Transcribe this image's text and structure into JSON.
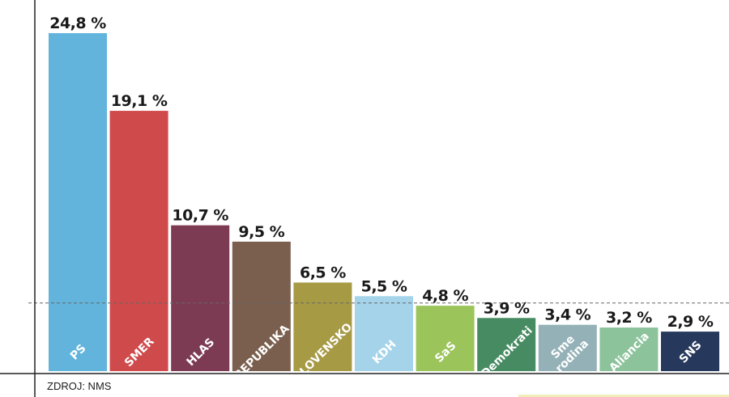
{
  "chart_data": {
    "type": "bar",
    "categories": [
      "PS",
      "SMER",
      "HLAS",
      "REPUBLIKA",
      "SLOVENSKO",
      "KDH",
      "SaS",
      "Demokrati",
      "Sme rodina",
      "Aliancia",
      "SNS"
    ],
    "values": [
      24.8,
      19.1,
      10.7,
      9.5,
      6.5,
      5.5,
      4.8,
      3.9,
      3.4,
      3.2,
      2.9
    ],
    "value_labels": [
      "24,8 %",
      "19,1 %",
      "10,7 %",
      "9,5 %",
      "6,5 %",
      "5,5 %",
      "4,8 %",
      "3,9 %",
      "3,4 %",
      "3,2 %",
      "2,9 %"
    ],
    "colors": [
      "#62b4dc",
      "#cf4a4b",
      "#7d3b53",
      "#7a5f4e",
      "#a69a45",
      "#a4d3ea",
      "#9bc45b",
      "#468b61",
      "#94b1b8",
      "#8cc39b",
      "#26395c"
    ],
    "threshold": 5,
    "ylim": [
      0,
      25.5
    ],
    "grid": false,
    "source": "ZDROJ: NMS"
  }
}
